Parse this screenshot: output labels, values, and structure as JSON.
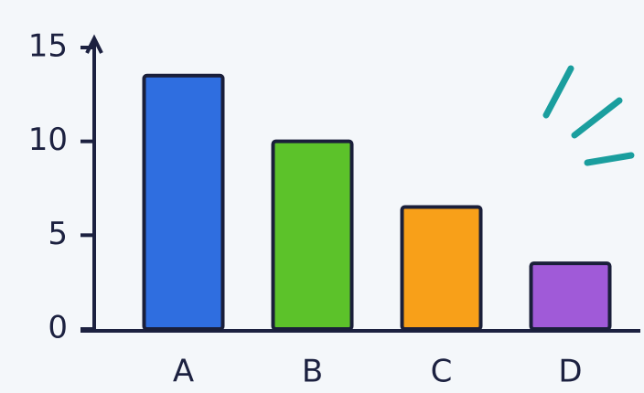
{
  "chart_data": {
    "type": "bar",
    "categories": [
      "A",
      "B",
      "C",
      "D"
    ],
    "values": [
      13.5,
      10,
      6.5,
      3.5
    ],
    "colors": [
      "#2f6ee0",
      "#5cc22a",
      "#f8a019",
      "#a05ad8"
    ],
    "ylim": [
      0,
      15
    ],
    "yticks": [
      0,
      5,
      10,
      15
    ],
    "grid": false
  }
}
